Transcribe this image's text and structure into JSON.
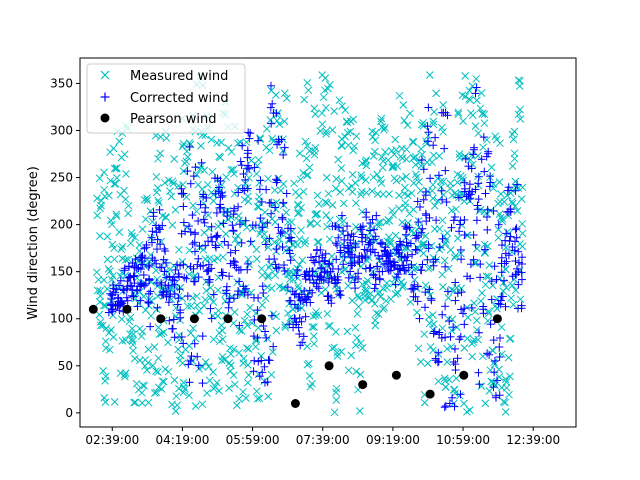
{
  "chart_data": {
    "type": "scatter",
    "title": "",
    "xlabel": "",
    "ylabel": "Wind direction (degree)",
    "xlim": [
      "01:53:00",
      "13:40:00"
    ],
    "ylim": [
      -15,
      377
    ],
    "x_ticks": [
      "02:39:00",
      "04:19:00",
      "05:59:00",
      "07:39:00",
      "09:19:00",
      "10:59:00",
      "12:39:00"
    ],
    "y_ticks": [
      0,
      50,
      100,
      150,
      200,
      250,
      300,
      350
    ],
    "grid": false,
    "legend_position": "top-left",
    "colors": {
      "measured": "#00bfbf",
      "corrected": "#0000ff",
      "pearson": "#000000"
    },
    "series": [
      {
        "name": "Measured wind",
        "marker": "x",
        "time_range": [
          "02:18:00",
          "12:27:00"
        ],
        "approx_range": [
          0,
          362
        ],
        "x": [
          "02:20:00",
          "02:28:00",
          "02:36:00",
          "02:44:00",
          "02:52:00",
          "03:00:00",
          "03:08:00",
          "03:16:00",
          "03:24:00",
          "03:32:00",
          "03:40:00",
          "03:48:00",
          "03:56:00",
          "04:04:00",
          "04:12:00",
          "04:20:00",
          "04:28:00",
          "04:36:00",
          "04:44:00",
          "04:52:00",
          "05:00:00",
          "05:08:00",
          "05:16:00",
          "05:24:00",
          "05:32:00",
          "05:40:00",
          "05:48:00",
          "05:56:00",
          "06:04:00",
          "06:12:00",
          "06:20:00",
          "06:28:00",
          "06:36:00",
          "06:44:00",
          "06:52:00",
          "07:00:00",
          "07:08:00",
          "07:16:00",
          "07:24:00",
          "07:32:00",
          "07:40:00",
          "07:48:00",
          "07:56:00",
          "08:04:00",
          "08:12:00",
          "08:20:00",
          "08:28:00",
          "08:36:00",
          "08:44:00",
          "08:52:00",
          "09:00:00",
          "09:08:00",
          "09:16:00",
          "09:24:00",
          "09:32:00",
          "09:40:00",
          "09:48:00",
          "09:56:00",
          "10:04:00",
          "10:12:00",
          "10:20:00",
          "10:28:00",
          "10:36:00",
          "10:44:00",
          "10:52:00",
          "11:00:00",
          "11:08:00",
          "11:16:00",
          "11:24:00",
          "11:32:00",
          "11:40:00",
          "11:48:00",
          "11:56:00",
          "12:04:00",
          "12:12:00",
          "12:20:00"
        ],
        "low": [
          60,
          10,
          5,
          10,
          40,
          0,
          5,
          10,
          0,
          10,
          5,
          0,
          20,
          0,
          0,
          20,
          10,
          0,
          5,
          0,
          10,
          20,
          0,
          5,
          30,
          0,
          10,
          20,
          0,
          5,
          0,
          40,
          60,
          70,
          90,
          100,
          110,
          50,
          20,
          100,
          120,
          60,
          0,
          60,
          80,
          40,
          0,
          40,
          120,
          90,
          100,
          110,
          120,
          120,
          130,
          110,
          100,
          40,
          5,
          10,
          0,
          20,
          0,
          0,
          10,
          5,
          0,
          40,
          10,
          0,
          20,
          10,
          0,
          0,
          40,
          120
        ],
        "high": [
          250,
          270,
          290,
          300,
          320,
          310,
          200,
          180,
          250,
          230,
          300,
          320,
          310,
          280,
          260,
          320,
          340,
          350,
          360,
          330,
          300,
          320,
          340,
          360,
          340,
          320,
          300,
          290,
          280,
          300,
          330,
          360,
          360,
          350,
          220,
          250,
          290,
          360,
          350,
          330,
          360,
          360,
          360,
          360,
          360,
          340,
          320,
          300,
          290,
          300,
          320,
          310,
          290,
          300,
          340,
          330,
          300,
          320,
          350,
          360,
          360,
          340,
          300,
          280,
          320,
          360,
          350,
          360,
          340,
          330,
          310,
          300,
          260,
          240,
          300,
          360
        ]
      },
      {
        "name": "Corrected wind",
        "marker": "+",
        "time_range": [
          "02:35:00",
          "12:27:00"
        ],
        "x": [
          "02:36:00",
          "02:44:00",
          "02:52:00",
          "03:00:00",
          "03:08:00",
          "03:16:00",
          "03:24:00",
          "03:32:00",
          "03:40:00",
          "03:48:00",
          "03:56:00",
          "04:04:00",
          "04:12:00",
          "04:20:00",
          "04:28:00",
          "04:36:00",
          "04:44:00",
          "04:52:00",
          "05:00:00",
          "05:08:00",
          "05:16:00",
          "05:24:00",
          "05:32:00",
          "05:40:00",
          "05:48:00",
          "05:56:00",
          "06:04:00",
          "06:12:00",
          "06:20:00",
          "06:28:00",
          "06:36:00",
          "06:44:00",
          "06:52:00",
          "07:00:00",
          "07:08:00",
          "07:16:00",
          "07:24:00",
          "07:32:00",
          "07:40:00",
          "07:48:00",
          "07:56:00",
          "08:04:00",
          "08:12:00",
          "08:20:00",
          "08:28:00",
          "08:36:00",
          "08:44:00",
          "08:52:00",
          "09:00:00",
          "09:08:00",
          "09:16:00",
          "09:24:00",
          "09:32:00",
          "09:40:00",
          "09:48:00",
          "09:56:00",
          "10:04:00",
          "10:12:00",
          "10:20:00",
          "10:28:00",
          "10:36:00",
          "10:44:00",
          "10:52:00",
          "11:00:00",
          "11:08:00",
          "11:16:00",
          "11:24:00",
          "11:32:00",
          "11:40:00",
          "11:48:00",
          "11:56:00",
          "12:04:00",
          "12:12:00",
          "12:20:00"
        ],
        "low": [
          100,
          110,
          105,
          115,
          120,
          100,
          130,
          90,
          100,
          120,
          110,
          80,
          100,
          40,
          20,
          5,
          30,
          150,
          100,
          130,
          140,
          110,
          120,
          90,
          110,
          100,
          40,
          0,
          0,
          60,
          120,
          150,
          90,
          80,
          70,
          100,
          110,
          130,
          140,
          110,
          130,
          120,
          140,
          150,
          130,
          160,
          150,
          130,
          140,
          150,
          145,
          130,
          150,
          140,
          120,
          100,
          90,
          60,
          20,
          10,
          5,
          0,
          10,
          80,
          100,
          90,
          20,
          60,
          20,
          10,
          100,
          150,
          130,
          100
        ],
        "high": [
          130,
          140,
          150,
          160,
          160,
          170,
          180,
          190,
          230,
          220,
          180,
          150,
          160,
          240,
          290,
          280,
          330,
          260,
          200,
          250,
          260,
          240,
          220,
          280,
          300,
          310,
          290,
          250,
          250,
          360,
          330,
          300,
          200,
          160,
          130,
          150,
          170,
          180,
          170,
          160,
          200,
          210,
          200,
          190,
          180,
          200,
          220,
          210,
          190,
          180,
          170,
          175,
          185,
          200,
          190,
          240,
          300,
          340,
          360,
          350,
          320,
          260,
          240,
          280,
          300,
          360,
          320,
          300,
          260,
          200,
          220,
          240,
          250,
          180
        ]
      },
      {
        "name": "Pearson wind",
        "marker": "o",
        "x": [
          "02:12:00",
          "03:00:00",
          "03:48:00",
          "04:36:00",
          "05:24:00",
          "06:12:00",
          "07:00:00",
          "07:48:00",
          "08:36:00",
          "09:24:00",
          "10:12:00",
          "11:00:00",
          "11:48:00"
        ],
        "y": [
          110,
          110,
          100,
          100,
          100,
          100,
          10,
          50,
          30,
          40,
          20,
          40,
          100
        ]
      }
    ]
  }
}
